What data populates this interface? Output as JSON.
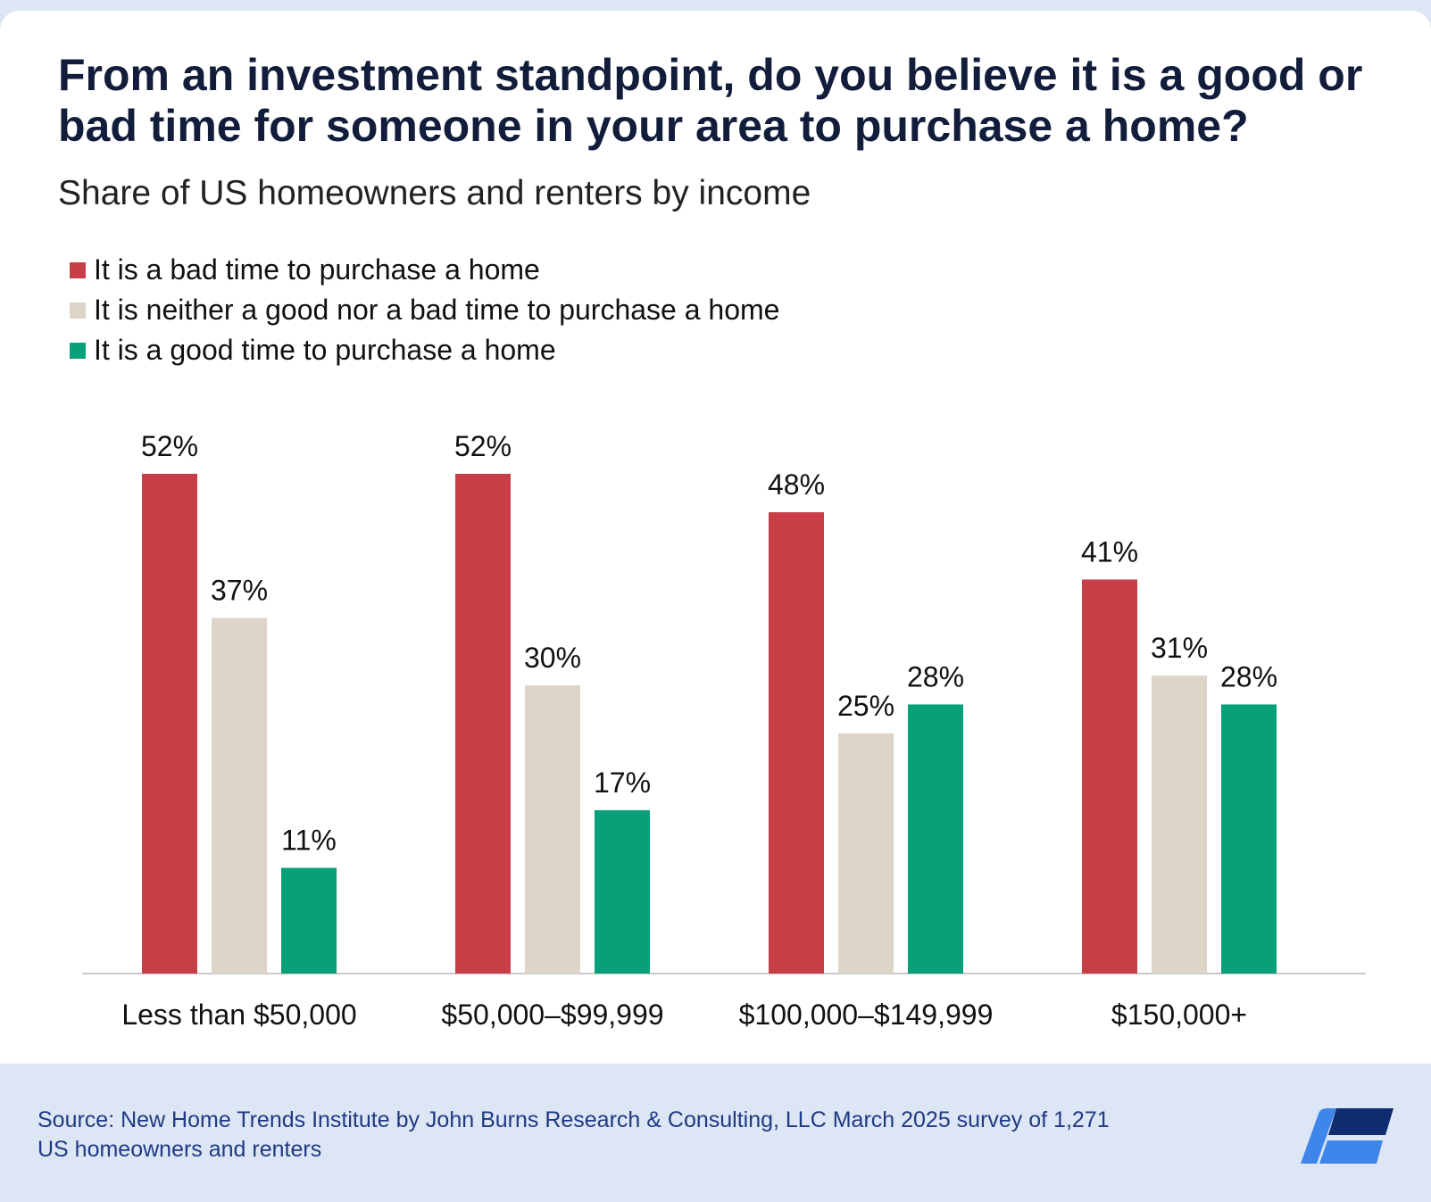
{
  "title": "From an investment standpoint, do you believe it is a good or bad time for someone in your area to purchase a home?",
  "subtitle": "Share of US homeowners and renters by income",
  "legend": [
    {
      "label": "It is a bad time to purchase a home",
      "color": "#c83e47"
    },
    {
      "label": "It is neither a good nor a bad time to purchase a home",
      "color": "#ddd5c8"
    },
    {
      "label": "It is a good time to purchase a home",
      "color": "#08a078"
    }
  ],
  "chart_data": {
    "type": "bar",
    "title": "From an investment standpoint, do you believe it is a good or bad time for someone in your area to purchase a home?",
    "subtitle": "Share of US homeowners and renters by income",
    "categories": [
      "Less than $50,000",
      "$50,000–$99,999",
      "$100,000–$149,999",
      "$150,000+"
    ],
    "series": [
      {
        "name": "It is a bad time to purchase a home",
        "color": "#c83e47",
        "values": [
          52,
          52,
          48,
          41
        ]
      },
      {
        "name": "It is neither a good nor a bad time to purchase a home",
        "color": "#ddd5c8",
        "values": [
          37,
          30,
          25,
          31
        ]
      },
      {
        "name": "It is a good time to purchase a home",
        "color": "#08a078",
        "values": [
          11,
          17,
          28,
          28
        ]
      }
    ],
    "value_suffix": "%",
    "ylim": [
      0,
      60
    ],
    "legend_position": "top-left",
    "grid": false
  },
  "footer": {
    "source": "Source: New Home Trends Institute by John Burns Research & Consulting, LLC March 2025 survey of 1,271 US homeowners and renters",
    "logo_icon": "company-logo-icon"
  }
}
